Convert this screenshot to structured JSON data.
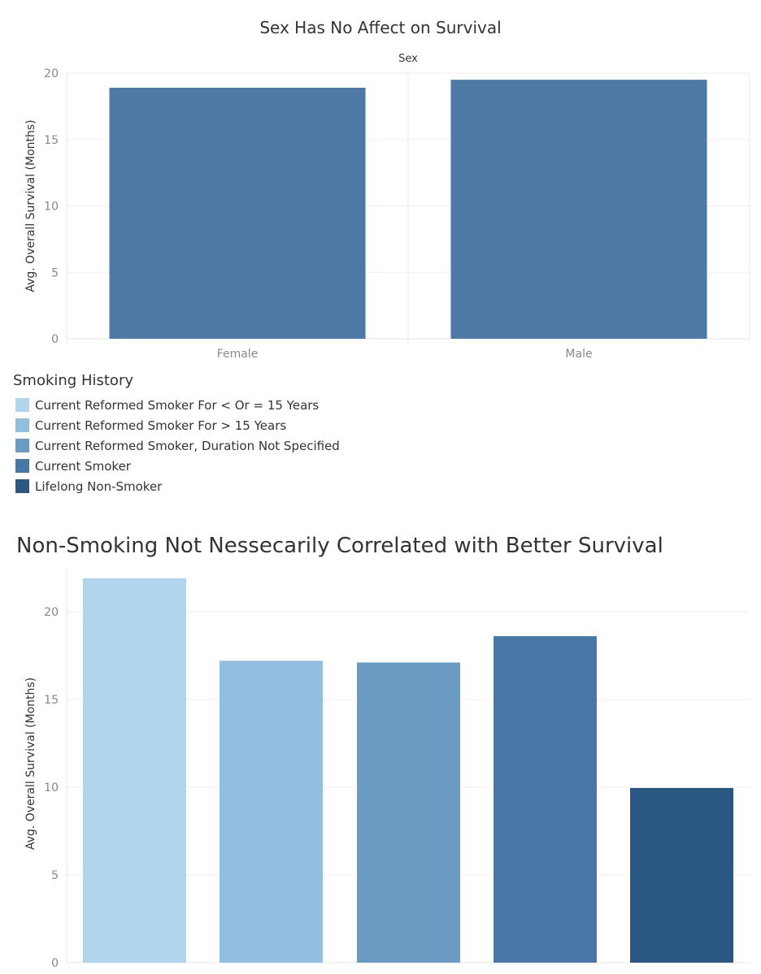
{
  "chart_data": [
    {
      "type": "bar",
      "title": "Sex Has No Affect on Survival",
      "column_header": "Sex",
      "ylabel": "Avg. Overall Survival (Months)",
      "xlabel": "",
      "categories": [
        "Female",
        "Male"
      ],
      "values": [
        18.9,
        19.5
      ],
      "ylim": [
        0,
        20
      ],
      "yticks": [
        "0",
        "5",
        "10",
        "15",
        "20"
      ],
      "ytick_values": [
        0,
        5,
        10,
        15,
        20
      ],
      "bar_color": "#4e79a7",
      "grid": true
    },
    {
      "type": "bar",
      "title": "Non-Smoking Not Nessecarily Correlated with Better Survival",
      "ylabel": "Avg. Overall Survival (Months)",
      "xlabel": "",
      "categories": [
        "Current Reformed Smoker For < Or = 15 Years",
        "Current Reformed Smoker For > 15 Years",
        "Current Reformed Smoker, Duration Not Specified",
        "Current Smoker",
        "Lifelong Non-Smoker"
      ],
      "values": [
        21.9,
        17.2,
        17.1,
        18.6,
        9.95
      ],
      "colors": [
        "#b0d5ec",
        "#92bfdf",
        "#6a9bc3",
        "#4978a8",
        "#2b5783"
      ],
      "ylim": [
        0,
        22.4
      ],
      "yticks": [
        "0",
        "5",
        "10",
        "15",
        "20"
      ],
      "ytick_values": [
        0,
        5,
        10,
        15,
        20
      ],
      "grid": true
    }
  ],
  "legend": {
    "title": "Smoking History",
    "items": [
      {
        "label": "Current Reformed Smoker For < Or = 15 Years",
        "color": "#b0d5ec"
      },
      {
        "label": "Current Reformed Smoker For > 15 Years",
        "color": "#92bfdf"
      },
      {
        "label": "Current Reformed Smoker, Duration Not Specified",
        "color": "#6a9bc3"
      },
      {
        "label": "Current Smoker",
        "color": "#4978a8"
      },
      {
        "label": "Lifelong Non-Smoker",
        "color": "#2b5783"
      }
    ]
  }
}
